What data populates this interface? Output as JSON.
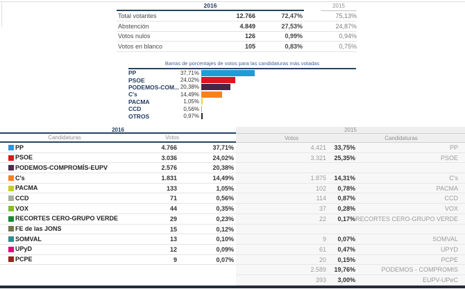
{
  "summary_table": {
    "year_main": "2016",
    "year_prev": "2015",
    "rows": [
      {
        "label": "Total votantes",
        "votes": "12.766",
        "pct": "72,47%",
        "pct_prev": "75,13%"
      },
      {
        "label": "Abstención",
        "votes": "4.849",
        "pct": "27,53%",
        "pct_prev": "24,87%"
      },
      {
        "label": "Votos nulos",
        "votes": "126",
        "pct": "0,99%",
        "pct_prev": "0,94%"
      },
      {
        "label": "Votos en blanco",
        "votes": "105",
        "pct": "0,83%",
        "pct_prev": "0,75%"
      }
    ]
  },
  "chart_data": {
    "type": "bar",
    "orientation": "horizontal",
    "title": "Barras de porcentajes de votos para las candidaturas más votadas",
    "categories": [
      "PP",
      "PSOE",
      "PODEMOS-COM...",
      "C's",
      "PACMA",
      "CCD",
      "OTROS"
    ],
    "values": [
      37.71,
      24.02,
      20.38,
      14.49,
      1.05,
      0.56,
      0.97
    ],
    "value_labels": [
      "37,71%",
      "24,02%",
      "20,38%",
      "14,49%",
      "1,05%",
      "0,56%",
      "0,97%"
    ],
    "colors": [
      "#1E9CD8",
      "#E0151B",
      "#4A2348",
      "#F5821E",
      "#D9DC3A",
      "#ACACA4",
      "#20242C"
    ],
    "xlim": [
      0,
      50
    ],
    "legend": "none",
    "grid": false
  },
  "results_table": {
    "left_year": "2016",
    "right_year": "2015",
    "left_headers": {
      "candidaturas": "Candidaturas",
      "votos": "Votos"
    },
    "right_headers": {
      "votos": "Votos",
      "candidaturas": "Candidaturas"
    },
    "rows": [
      {
        "color": "#1E9CD8",
        "name": "PP",
        "votes": "4.766",
        "pct": "37,71%",
        "votes_prev": "4.421",
        "pct_prev": "33,75%",
        "name_prev": "PP"
      },
      {
        "color": "#E0151B",
        "name": "PSOE",
        "votes": "3.036",
        "pct": "24,02%",
        "votes_prev": "3.321",
        "pct_prev": "25,35%",
        "name_prev": "PSOE"
      },
      {
        "color": "#532A4E",
        "name": "PODEMOS-COMPROMÍS-EUPV",
        "votes": "2.576",
        "pct": "20,38%",
        "votes_prev": "",
        "pct_prev": "",
        "name_prev": ""
      },
      {
        "color": "#F5821E",
        "name": "C's",
        "votes": "1.831",
        "pct": "14,49%",
        "votes_prev": "1.875",
        "pct_prev": "14,31%",
        "name_prev": "C's"
      },
      {
        "color": "#C3CE2A",
        "name": "PACMA",
        "votes": "133",
        "pct": "1,05%",
        "votes_prev": "102",
        "pct_prev": "0,78%",
        "name_prev": "PACMA"
      },
      {
        "color": "#A6AFA0",
        "name": "CCD",
        "votes": "71",
        "pct": "0,56%",
        "votes_prev": "114",
        "pct_prev": "0,87%",
        "name_prev": "CCD"
      },
      {
        "color": "#86BC25",
        "name": "VOX",
        "votes": "44",
        "pct": "0,35%",
        "votes_prev": "37",
        "pct_prev": "0,28%",
        "name_prev": "VOX"
      },
      {
        "color": "#178A33",
        "name": "RECORTES CERO-GRUPO VERDE",
        "votes": "29",
        "pct": "0,23%",
        "votes_prev": "22",
        "pct_prev": "0,17%",
        "name_prev": "RECORTES CERO-GRUPO VERDE"
      },
      {
        "color": "#75744B",
        "name": "FE de las JONS",
        "votes": "15",
        "pct": "0,12%",
        "votes_prev": "",
        "pct_prev": "",
        "name_prev": ""
      },
      {
        "color": "#2B8D8F",
        "name": "SOMVAL",
        "votes": "13",
        "pct": "0,10%",
        "votes_prev": "9",
        "pct_prev": "0,07%",
        "name_prev": "SOMVAL"
      },
      {
        "color": "#E5007E",
        "name": "UPyD",
        "votes": "12",
        "pct": "0,09%",
        "votes_prev": "61",
        "pct_prev": "0,47%",
        "name_prev": "UPYD"
      },
      {
        "color": "#A81C1C",
        "name": "PCPE",
        "votes": "9",
        "pct": "0,07%",
        "votes_prev": "20",
        "pct_prev": "0,15%",
        "name_prev": "PCPE"
      },
      {
        "color": "",
        "name": "",
        "votes": "",
        "pct": "",
        "votes_prev": "2.589",
        "pct_prev": "19,76%",
        "name_prev": "PODEMOS - COMPROMIS"
      },
      {
        "color": "",
        "name": "",
        "votes": "",
        "pct": "",
        "votes_prev": "393",
        "pct_prev": "3,00%",
        "name_prev": "EUPV-UPeC"
      }
    ]
  }
}
